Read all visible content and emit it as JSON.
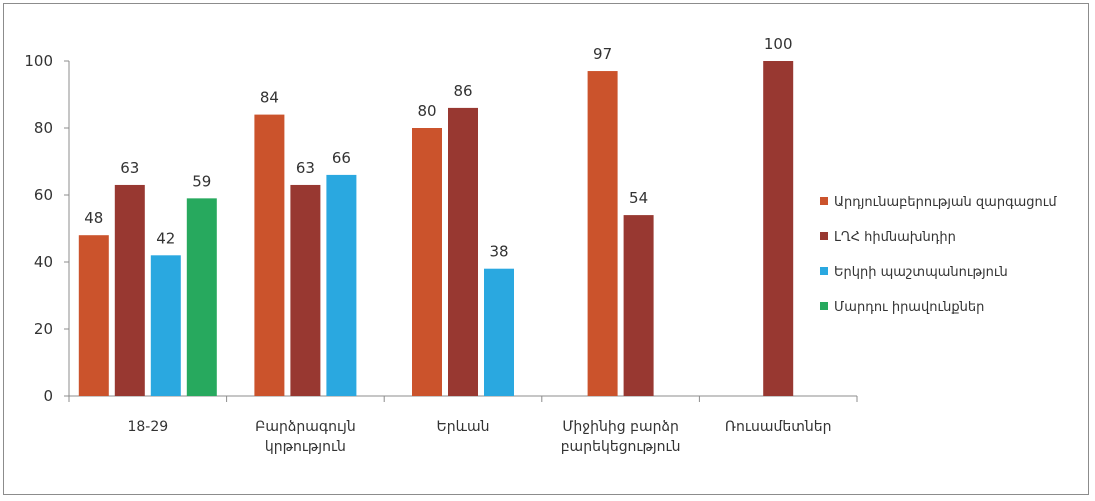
{
  "chart_data": {
    "type": "bar",
    "ylim": [
      0,
      100
    ],
    "yticks": [
      0,
      20,
      40,
      60,
      80,
      100
    ],
    "grid": false,
    "legend_position": "right",
    "categories": [
      [
        "18-29"
      ],
      [
        "Բարձրագույն",
        "կրթություն"
      ],
      [
        "Երևան"
      ],
      [
        "Միջինից բարձր",
        "բարեկեցություն"
      ],
      [
        "Ռուսամետներ"
      ]
    ],
    "series": [
      {
        "name": "Արդյունաբերության զարգացում",
        "color": "#cb532c",
        "values": [
          48,
          84,
          80,
          97,
          null
        ]
      },
      {
        "name": "ԼՂՀ հիմնախնդիր",
        "color": "#983831",
        "values": [
          63,
          63,
          86,
          54,
          100
        ]
      },
      {
        "name": "Երկրի պաշտպանություն",
        "color": "#2aa8e0",
        "values": [
          42,
          66,
          38,
          null,
          null
        ]
      },
      {
        "name": "Մարդու իրավունքներ",
        "color": "#27a95e",
        "values": [
          59,
          null,
          null,
          null,
          null
        ]
      }
    ]
  }
}
